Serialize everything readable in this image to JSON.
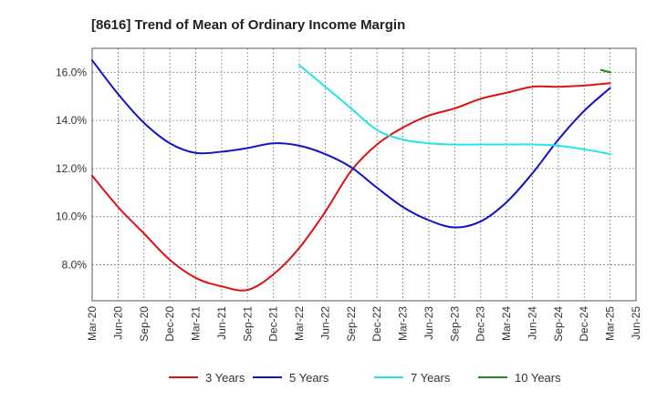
{
  "chart_data": {
    "type": "line",
    "title": "[8616]  Trend of Mean of Ordinary Income Margin",
    "xlabel": "",
    "ylabel": "",
    "x": [
      "Mar-20",
      "Jun-20",
      "Sep-20",
      "Dec-20",
      "Mar-21",
      "Jun-21",
      "Sep-21",
      "Dec-21",
      "Mar-22",
      "Jun-22",
      "Sep-22",
      "Dec-22",
      "Mar-23",
      "Jun-23",
      "Sep-23",
      "Dec-23",
      "Mar-24",
      "Jun-24",
      "Sep-24",
      "Dec-24",
      "Mar-25",
      "Jun-25"
    ],
    "ylim": [
      6.5,
      17.0
    ],
    "yticks": [
      8.0,
      10.0,
      12.0,
      14.0,
      16.0
    ],
    "ytick_labels": [
      "8.0%",
      "10.0%",
      "12.0%",
      "14.0%",
      "16.0%"
    ],
    "grid": true,
    "legend_position": "bottom",
    "series": [
      {
        "name": "3 Years",
        "color": "#dd1111",
        "values": [
          11.7,
          10.4,
          9.3,
          8.2,
          7.45,
          7.1,
          6.95,
          7.6,
          8.7,
          10.2,
          11.9,
          13.0,
          13.7,
          14.2,
          14.5,
          14.9,
          15.15,
          15.4,
          15.4,
          15.45,
          15.55,
          null
        ]
      },
      {
        "name": "5 Years",
        "color": "#1111cc",
        "values": [
          16.5,
          15.1,
          13.9,
          13.05,
          12.65,
          12.7,
          12.85,
          13.05,
          12.95,
          12.6,
          12.05,
          11.2,
          10.4,
          9.85,
          9.55,
          9.8,
          10.6,
          11.8,
          13.2,
          14.4,
          15.35,
          null
        ]
      },
      {
        "name": "7 Years",
        "color": "#22e5e5",
        "values": [
          null,
          null,
          null,
          null,
          null,
          null,
          null,
          null,
          16.3,
          15.4,
          14.5,
          13.6,
          13.2,
          13.05,
          13.0,
          13.0,
          13.0,
          13.0,
          12.95,
          12.8,
          12.6,
          null
        ]
      },
      {
        "name": "10 Years",
        "color": "#228822",
        "values": [
          null,
          null,
          null,
          null,
          null,
          null,
          null,
          null,
          null,
          null,
          null,
          null,
          null,
          null,
          null,
          null,
          null,
          null,
          null,
          null,
          16.0,
          null
        ]
      }
    ]
  }
}
